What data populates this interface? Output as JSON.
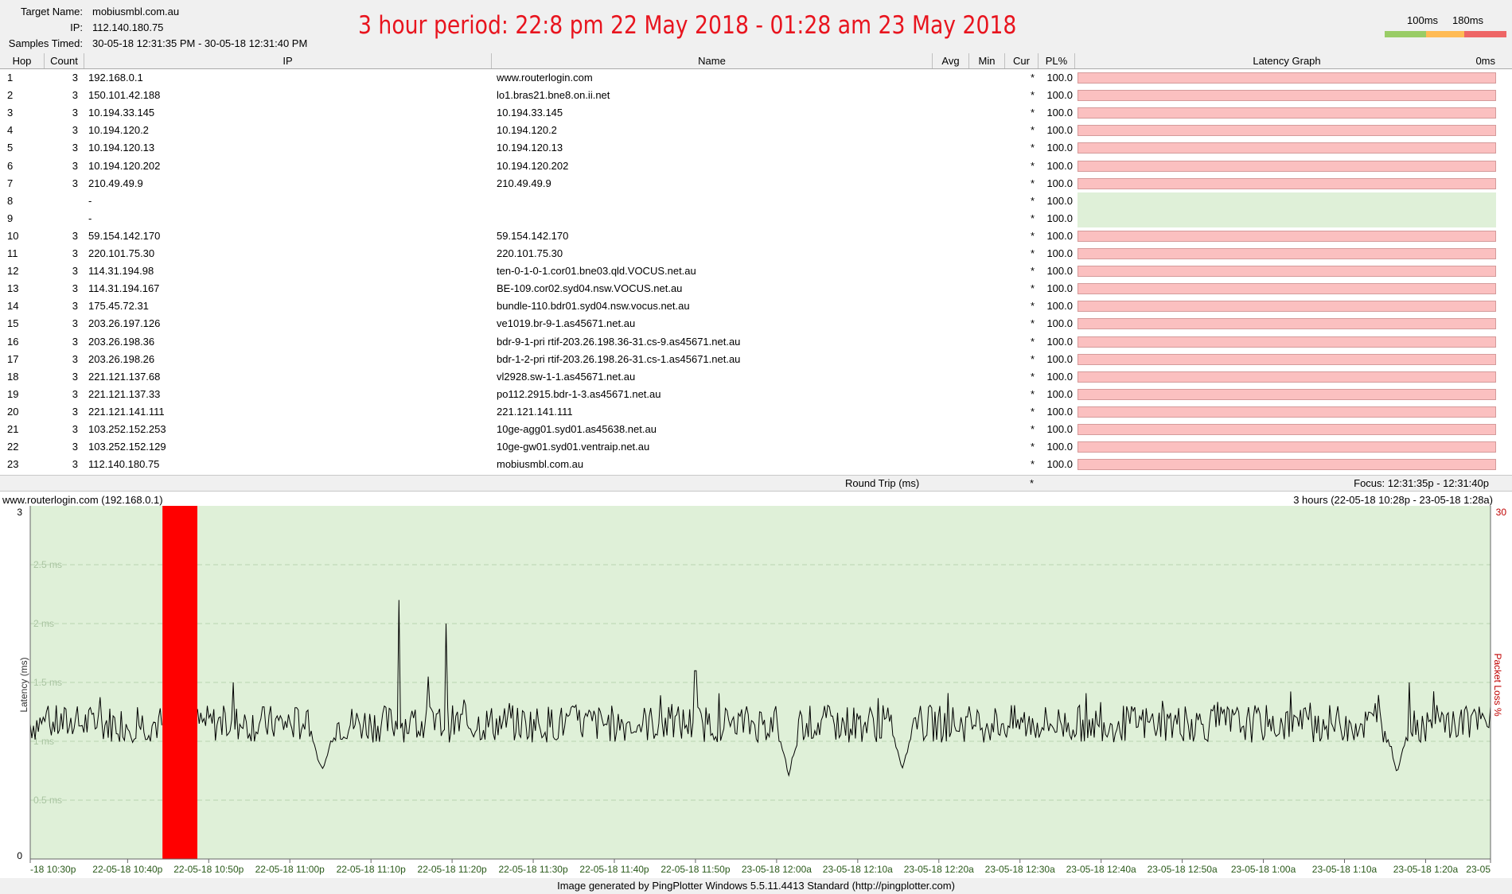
{
  "header": {
    "target_label": "Target Name:",
    "target_value": "mobiusmbl.com.au",
    "ip_label": "IP:",
    "ip_value": "112.140.180.75",
    "samples_label": "Samples Timed:",
    "samples_value": "30-05-18 12:31:35 PM - 30-05-18 12:31:40 PM",
    "overlay_title": "3 hour period:  22:8 pm 22 May 2018 - 01:28 am 23 May 2018",
    "scale_labels": [
      "100ms",
      "180ms"
    ],
    "scale_colors": [
      "#99cc66",
      "#ffbb55",
      "#ee6666"
    ]
  },
  "columns": {
    "hop": "Hop",
    "count": "Count",
    "ip": "IP",
    "name": "Name",
    "avg": "Avg",
    "min": "Min",
    "cur": "Cur",
    "pl": "PL%",
    "graph": "Latency Graph",
    "graph_scale": "0ms"
  },
  "hops": [
    {
      "hop": "1",
      "count": "3",
      "ip": "192.168.0.1",
      "name": "www.routerlogin.com",
      "cur": "*",
      "pl": "100.0",
      "loss": true
    },
    {
      "hop": "2",
      "count": "3",
      "ip": "150.101.42.188",
      "name": "lo1.bras21.bne8.on.ii.net",
      "cur": "*",
      "pl": "100.0",
      "loss": true
    },
    {
      "hop": "3",
      "count": "3",
      "ip": "10.194.33.145",
      "name": "10.194.33.145",
      "cur": "*",
      "pl": "100.0",
      "loss": true
    },
    {
      "hop": "4",
      "count": "3",
      "ip": "10.194.120.2",
      "name": "10.194.120.2",
      "cur": "*",
      "pl": "100.0",
      "loss": true
    },
    {
      "hop": "5",
      "count": "3",
      "ip": "10.194.120.13",
      "name": "10.194.120.13",
      "cur": "*",
      "pl": "100.0",
      "loss": true
    },
    {
      "hop": "6",
      "count": "3",
      "ip": "10.194.120.202",
      "name": "10.194.120.202",
      "cur": "*",
      "pl": "100.0",
      "loss": true
    },
    {
      "hop": "7",
      "count": "3",
      "ip": "210.49.49.9",
      "name": "210.49.49.9",
      "cur": "*",
      "pl": "100.0",
      "loss": true
    },
    {
      "hop": "8",
      "count": "",
      "ip": "-",
      "name": "",
      "cur": "*",
      "pl": "100.0",
      "loss": false
    },
    {
      "hop": "9",
      "count": "",
      "ip": "-",
      "name": "",
      "cur": "*",
      "pl": "100.0",
      "loss": false
    },
    {
      "hop": "10",
      "count": "3",
      "ip": "59.154.142.170",
      "name": "59.154.142.170",
      "cur": "*",
      "pl": "100.0",
      "loss": true
    },
    {
      "hop": "11",
      "count": "3",
      "ip": "220.101.75.30",
      "name": "220.101.75.30",
      "cur": "*",
      "pl": "100.0",
      "loss": true
    },
    {
      "hop": "12",
      "count": "3",
      "ip": "114.31.194.98",
      "name": "ten-0-1-0-1.cor01.bne03.qld.VOCUS.net.au",
      "cur": "*",
      "pl": "100.0",
      "loss": true
    },
    {
      "hop": "13",
      "count": "3",
      "ip": "114.31.194.167",
      "name": "BE-109.cor02.syd04.nsw.VOCUS.net.au",
      "cur": "*",
      "pl": "100.0",
      "loss": true
    },
    {
      "hop": "14",
      "count": "3",
      "ip": "175.45.72.31",
      "name": "bundle-110.bdr01.syd04.nsw.vocus.net.au",
      "cur": "*",
      "pl": "100.0",
      "loss": true
    },
    {
      "hop": "15",
      "count": "3",
      "ip": "203.26.197.126",
      "name": "ve1019.br-9-1.as45671.net.au",
      "cur": "*",
      "pl": "100.0",
      "loss": true
    },
    {
      "hop": "16",
      "count": "3",
      "ip": "203.26.198.36",
      "name": "bdr-9-1-pri rtif-203.26.198.36-31.cs-9.as45671.net.au",
      "cur": "*",
      "pl": "100.0",
      "loss": true
    },
    {
      "hop": "17",
      "count": "3",
      "ip": "203.26.198.26",
      "name": "bdr-1-2-pri rtif-203.26.198.26-31.cs-1.as45671.net.au",
      "cur": "*",
      "pl": "100.0",
      "loss": true
    },
    {
      "hop": "18",
      "count": "3",
      "ip": "221.121.137.68",
      "name": "vl2928.sw-1-1.as45671.net.au",
      "cur": "*",
      "pl": "100.0",
      "loss": true
    },
    {
      "hop": "19",
      "count": "3",
      "ip": "221.121.137.33",
      "name": "po112.2915.bdr-1-3.as45671.net.au",
      "cur": "*",
      "pl": "100.0",
      "loss": true
    },
    {
      "hop": "20",
      "count": "3",
      "ip": "221.121.141.111",
      "name": "221.121.141.111",
      "cur": "*",
      "pl": "100.0",
      "loss": true
    },
    {
      "hop": "21",
      "count": "3",
      "ip": "103.252.152.253",
      "name": "10ge-agg01.syd01.as45638.net.au",
      "cur": "*",
      "pl": "100.0",
      "loss": true
    },
    {
      "hop": "22",
      "count": "3",
      "ip": "103.252.152.129",
      "name": "10ge-gw01.syd01.ventraip.net.au",
      "cur": "*",
      "pl": "100.0",
      "loss": true
    },
    {
      "hop": "23",
      "count": "3",
      "ip": "112.140.180.75",
      "name": "mobiusmbl.com.au",
      "cur": "*",
      "pl": "100.0",
      "loss": true
    }
  ],
  "round_trip": {
    "label": "Round Trip (ms)",
    "cur": "*",
    "focus": "Focus: 12:31:35p - 12:31:40p"
  },
  "graph": {
    "title": "www.routerlogin.com (192.168.0.1)",
    "range": "3 hours (22-05-18 10:28p - 23-05-18 1:28a)",
    "footer": "Image generated by PingPlotter Windows 5.5.11.4413 Standard (http://pingplotter.com)"
  },
  "chart_data": {
    "type": "line",
    "title": "www.routerlogin.com (192.168.0.1)",
    "ylabel": "Latency (ms)",
    "y2label": "Packet Loss %",
    "ylim": [
      0,
      3
    ],
    "y2max": "30",
    "y_axis_labels": {
      "min": "0",
      "max": "3"
    },
    "ytick_labels": [
      "0.5 ms",
      "1 ms",
      "1.5 ms",
      "2 ms",
      "2.5 ms"
    ],
    "ytick_values": [
      0.5,
      1,
      1.5,
      2,
      2.5
    ],
    "xtick_labels": [
      "-18 10:30p",
      "22-05-18 10:40p",
      "22-05-18 10:50p",
      "22-05-18 11:00p",
      "22-05-18 11:10p",
      "22-05-18 11:20p",
      "22-05-18 11:30p",
      "22-05-18 11:40p",
      "22-05-18 11:50p",
      "23-05-18 12:00a",
      "23-05-18 12:10a",
      "23-05-18 12:20a",
      "23-05-18 12:30a",
      "23-05-18 12:40a",
      "23-05-18 12:50a",
      "23-05-18 1:00a",
      "23-05-18 1:10a",
      "23-05-18 1:20a",
      "23-05"
    ],
    "x_minutes_range": [
      0,
      180
    ],
    "loss_region_minutes": [
      16.3,
      20.6
    ],
    "baseline_ms": 1.15,
    "spikes": [
      {
        "minute": 45.5,
        "ms": 2.2
      },
      {
        "minute": 51.2,
        "ms": 2.0
      },
      {
        "minute": 82.0,
        "ms": 1.6
      },
      {
        "minute": 25.0,
        "ms": 1.5
      },
      {
        "minute": 49.0,
        "ms": 1.55
      },
      {
        "minute": 170.0,
        "ms": 1.5
      }
    ],
    "dips": [
      {
        "minute": 36.0,
        "ms": 0.7
      },
      {
        "minute": 93.5,
        "ms": 0.7
      },
      {
        "minute": 107.5,
        "ms": 0.75
      },
      {
        "minute": 168.5,
        "ms": 0.72
      }
    ],
    "background_color": "#dff0d8",
    "loss_color": "#ff0000",
    "line_color": "#000000"
  }
}
